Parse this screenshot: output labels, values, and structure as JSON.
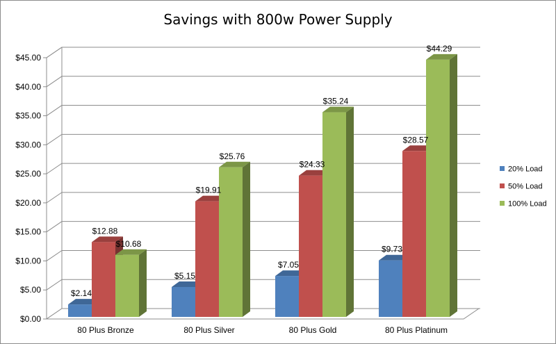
{
  "chart_data": {
    "type": "bar",
    "title": "Savings with 800w Power Supply",
    "categories": [
      "80 Plus Bronze",
      "80 Plus Silver",
      "80 Plus Gold",
      "80 Plus Platinum"
    ],
    "series": [
      {
        "name": "20% Load",
        "color": "#4f81bd",
        "values": [
          2.14,
          5.15,
          7.05,
          9.73
        ],
        "labels": [
          "$2.14",
          "$5.15",
          "$7.05",
          "$9.73"
        ]
      },
      {
        "name": "50% Load",
        "color": "#c0504d",
        "values": [
          12.88,
          19.91,
          24.33,
          28.57
        ],
        "labels": [
          "$12.88",
          "$19.91",
          "$24.33",
          "$28.57"
        ]
      },
      {
        "name": "100% Load",
        "color": "#9bbb59",
        "values": [
          10.68,
          25.76,
          35.24,
          44.29
        ],
        "labels": [
          "$10.68",
          "$25.76",
          "$35.24",
          "$44.29"
        ]
      }
    ],
    "yticks": [
      0,
      5,
      10,
      15,
      20,
      25,
      30,
      35,
      40,
      45
    ],
    "ytick_labels": [
      "$0.00",
      "$5.00",
      "$10.00",
      "$15.00",
      "$20.00",
      "$25.00",
      "$30.00",
      "$35.00",
      "$40.00",
      "$45.00"
    ],
    "ylim": [
      0,
      45
    ],
    "grid": true,
    "legend_position": "right",
    "style": "3d-clustered-column"
  }
}
